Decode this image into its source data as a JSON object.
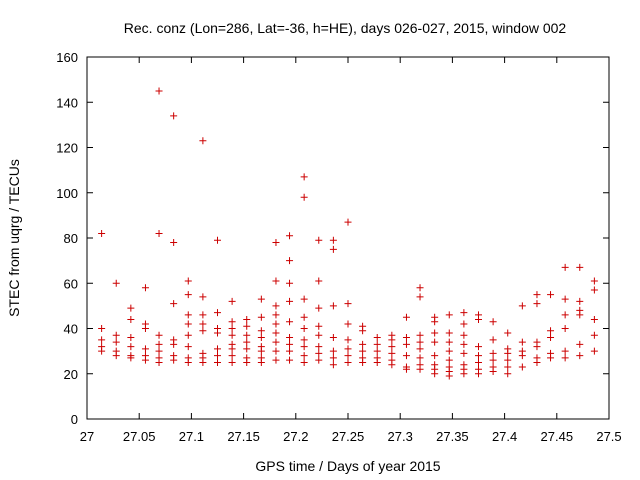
{
  "chart_data": {
    "type": "scatter",
    "title": "Rec. conz (Lon=286, Lat=-36, h=HE), days 026-027, 2015, window 002",
    "xlabel": "GPS time / Days of year 2015",
    "ylabel": "STEC from uqrg / TECUs",
    "xlim": [
      27,
      27.5
    ],
    "ylim": [
      0,
      160
    ],
    "x_ticks": [
      "27",
      "27.05",
      "27.1",
      "27.15",
      "27.2",
      "27.25",
      "27.3",
      "27.35",
      "27.4",
      "27.45",
      "27.5"
    ],
    "y_ticks": [
      "0",
      "20",
      "40",
      "60",
      "80",
      "100",
      "120",
      "140",
      "160"
    ],
    "grid": false,
    "marker": "plus",
    "color": "#cc0000",
    "points": [
      [
        27.014,
        82
      ],
      [
        27.014,
        40
      ],
      [
        27.014,
        35
      ],
      [
        27.014,
        32
      ],
      [
        27.014,
        30
      ],
      [
        27.028,
        60
      ],
      [
        27.028,
        37
      ],
      [
        27.028,
        34
      ],
      [
        27.028,
        30
      ],
      [
        27.028,
        28
      ],
      [
        27.042,
        49
      ],
      [
        27.042,
        44
      ],
      [
        27.042,
        36
      ],
      [
        27.042,
        32
      ],
      [
        27.042,
        28
      ],
      [
        27.042,
        27
      ],
      [
        27.056,
        58
      ],
      [
        27.056,
        42
      ],
      [
        27.056,
        40
      ],
      [
        27.056,
        31
      ],
      [
        27.056,
        28
      ],
      [
        27.056,
        26
      ],
      [
        27.069,
        145
      ],
      [
        27.069,
        82
      ],
      [
        27.069,
        37
      ],
      [
        27.069,
        33
      ],
      [
        27.069,
        30
      ],
      [
        27.069,
        27
      ],
      [
        27.069,
        25
      ],
      [
        27.083,
        134
      ],
      [
        27.083,
        78
      ],
      [
        27.083,
        51
      ],
      [
        27.083,
        35
      ],
      [
        27.083,
        33
      ],
      [
        27.083,
        28
      ],
      [
        27.083,
        26
      ],
      [
        27.097,
        61
      ],
      [
        27.097,
        55
      ],
      [
        27.097,
        46
      ],
      [
        27.097,
        42
      ],
      [
        27.097,
        37
      ],
      [
        27.097,
        32
      ],
      [
        27.097,
        27
      ],
      [
        27.097,
        25
      ],
      [
        27.111,
        123
      ],
      [
        27.111,
        54
      ],
      [
        27.111,
        46
      ],
      [
        27.111,
        42
      ],
      [
        27.111,
        39
      ],
      [
        27.111,
        29
      ],
      [
        27.111,
        27
      ],
      [
        27.111,
        25
      ],
      [
        27.125,
        79
      ],
      [
        27.125,
        47
      ],
      [
        27.125,
        40
      ],
      [
        27.125,
        38
      ],
      [
        27.125,
        31
      ],
      [
        27.125,
        28
      ],
      [
        27.125,
        25
      ],
      [
        27.139,
        52
      ],
      [
        27.139,
        43
      ],
      [
        27.139,
        40
      ],
      [
        27.139,
        37
      ],
      [
        27.139,
        33
      ],
      [
        27.139,
        31
      ],
      [
        27.139,
        28
      ],
      [
        27.139,
        25
      ],
      [
        27.153,
        44
      ],
      [
        27.153,
        41
      ],
      [
        27.153,
        37
      ],
      [
        27.153,
        34
      ],
      [
        27.153,
        31
      ],
      [
        27.153,
        27
      ],
      [
        27.153,
        25
      ],
      [
        27.167,
        53
      ],
      [
        27.167,
        45
      ],
      [
        27.167,
        39
      ],
      [
        27.167,
        36
      ],
      [
        27.167,
        32
      ],
      [
        27.167,
        30
      ],
      [
        27.167,
        27
      ],
      [
        27.167,
        25
      ],
      [
        27.181,
        78
      ],
      [
        27.181,
        61
      ],
      [
        27.181,
        50
      ],
      [
        27.181,
        46
      ],
      [
        27.181,
        42
      ],
      [
        27.181,
        38
      ],
      [
        27.181,
        34
      ],
      [
        27.181,
        30
      ],
      [
        27.181,
        26
      ],
      [
        27.194,
        81
      ],
      [
        27.194,
        70
      ],
      [
        27.194,
        60
      ],
      [
        27.194,
        52
      ],
      [
        27.194,
        43
      ],
      [
        27.194,
        36
      ],
      [
        27.194,
        33
      ],
      [
        27.194,
        30
      ],
      [
        27.194,
        26
      ],
      [
        27.208,
        107
      ],
      [
        27.208,
        98
      ],
      [
        27.208,
        53
      ],
      [
        27.208,
        45
      ],
      [
        27.208,
        40
      ],
      [
        27.208,
        35
      ],
      [
        27.208,
        32
      ],
      [
        27.208,
        28
      ],
      [
        27.208,
        25
      ],
      [
        27.222,
        79
      ],
      [
        27.222,
        61
      ],
      [
        27.222,
        49
      ],
      [
        27.222,
        41
      ],
      [
        27.222,
        37
      ],
      [
        27.222,
        32
      ],
      [
        27.222,
        29
      ],
      [
        27.222,
        26
      ],
      [
        27.236,
        79
      ],
      [
        27.236,
        75
      ],
      [
        27.236,
        50
      ],
      [
        27.236,
        36
      ],
      [
        27.236,
        30
      ],
      [
        27.236,
        27
      ],
      [
        27.236,
        24
      ],
      [
        27.25,
        87
      ],
      [
        27.25,
        51
      ],
      [
        27.25,
        42
      ],
      [
        27.25,
        35
      ],
      [
        27.25,
        31
      ],
      [
        27.25,
        28
      ],
      [
        27.25,
        25
      ],
      [
        27.264,
        41
      ],
      [
        27.264,
        39
      ],
      [
        27.264,
        33
      ],
      [
        27.264,
        30
      ],
      [
        27.264,
        27
      ],
      [
        27.264,
        25
      ],
      [
        27.278,
        36
      ],
      [
        27.278,
        33
      ],
      [
        27.278,
        30
      ],
      [
        27.278,
        27
      ],
      [
        27.278,
        25
      ],
      [
        27.292,
        37
      ],
      [
        27.292,
        35
      ],
      [
        27.292,
        32
      ],
      [
        27.292,
        29
      ],
      [
        27.292,
        26
      ],
      [
        27.292,
        24
      ],
      [
        27.306,
        45
      ],
      [
        27.306,
        36
      ],
      [
        27.306,
        33
      ],
      [
        27.306,
        28
      ],
      [
        27.306,
        23
      ],
      [
        27.306,
        22
      ],
      [
        27.319,
        58
      ],
      [
        27.319,
        54
      ],
      [
        27.319,
        37
      ],
      [
        27.319,
        34
      ],
      [
        27.319,
        31
      ],
      [
        27.319,
        27
      ],
      [
        27.319,
        24
      ],
      [
        27.319,
        22
      ],
      [
        27.333,
        45
      ],
      [
        27.333,
        43
      ],
      [
        27.333,
        38
      ],
      [
        27.333,
        34
      ],
      [
        27.333,
        28
      ],
      [
        27.333,
        24
      ],
      [
        27.333,
        22
      ],
      [
        27.333,
        20
      ],
      [
        27.347,
        46
      ],
      [
        27.347,
        38
      ],
      [
        27.347,
        34
      ],
      [
        27.347,
        30
      ],
      [
        27.347,
        26
      ],
      [
        27.347,
        23
      ],
      [
        27.347,
        21
      ],
      [
        27.347,
        19
      ],
      [
        27.361,
        47
      ],
      [
        27.361,
        42
      ],
      [
        27.361,
        37
      ],
      [
        27.361,
        33
      ],
      [
        27.361,
        29
      ],
      [
        27.361,
        24
      ],
      [
        27.361,
        22
      ],
      [
        27.361,
        20
      ],
      [
        27.375,
        46
      ],
      [
        27.375,
        44
      ],
      [
        27.375,
        32
      ],
      [
        27.375,
        28
      ],
      [
        27.375,
        25
      ],
      [
        27.375,
        22
      ],
      [
        27.375,
        20
      ],
      [
        27.389,
        43
      ],
      [
        27.389,
        35
      ],
      [
        27.389,
        29
      ],
      [
        27.389,
        26
      ],
      [
        27.389,
        23
      ],
      [
        27.389,
        21
      ],
      [
        27.403,
        38
      ],
      [
        27.403,
        31
      ],
      [
        27.403,
        29
      ],
      [
        27.403,
        26
      ],
      [
        27.403,
        23
      ],
      [
        27.403,
        20
      ],
      [
        27.417,
        50
      ],
      [
        27.417,
        34
      ],
      [
        27.417,
        30
      ],
      [
        27.417,
        28
      ],
      [
        27.417,
        23
      ],
      [
        27.431,
        55
      ],
      [
        27.431,
        51
      ],
      [
        27.431,
        34
      ],
      [
        27.431,
        32
      ],
      [
        27.431,
        27
      ],
      [
        27.431,
        25
      ],
      [
        27.444,
        55
      ],
      [
        27.444,
        39
      ],
      [
        27.444,
        36
      ],
      [
        27.444,
        29
      ],
      [
        27.444,
        27
      ],
      [
        27.458,
        67
      ],
      [
        27.458,
        53
      ],
      [
        27.458,
        46
      ],
      [
        27.458,
        40
      ],
      [
        27.458,
        30
      ],
      [
        27.458,
        27
      ],
      [
        27.472,
        67
      ],
      [
        27.472,
        52
      ],
      [
        27.472,
        48
      ],
      [
        27.472,
        46
      ],
      [
        27.472,
        33
      ],
      [
        27.472,
        28
      ],
      [
        27.486,
        61
      ],
      [
        27.486,
        57
      ],
      [
        27.486,
        44
      ],
      [
        27.486,
        37
      ],
      [
        27.486,
        30
      ]
    ]
  }
}
